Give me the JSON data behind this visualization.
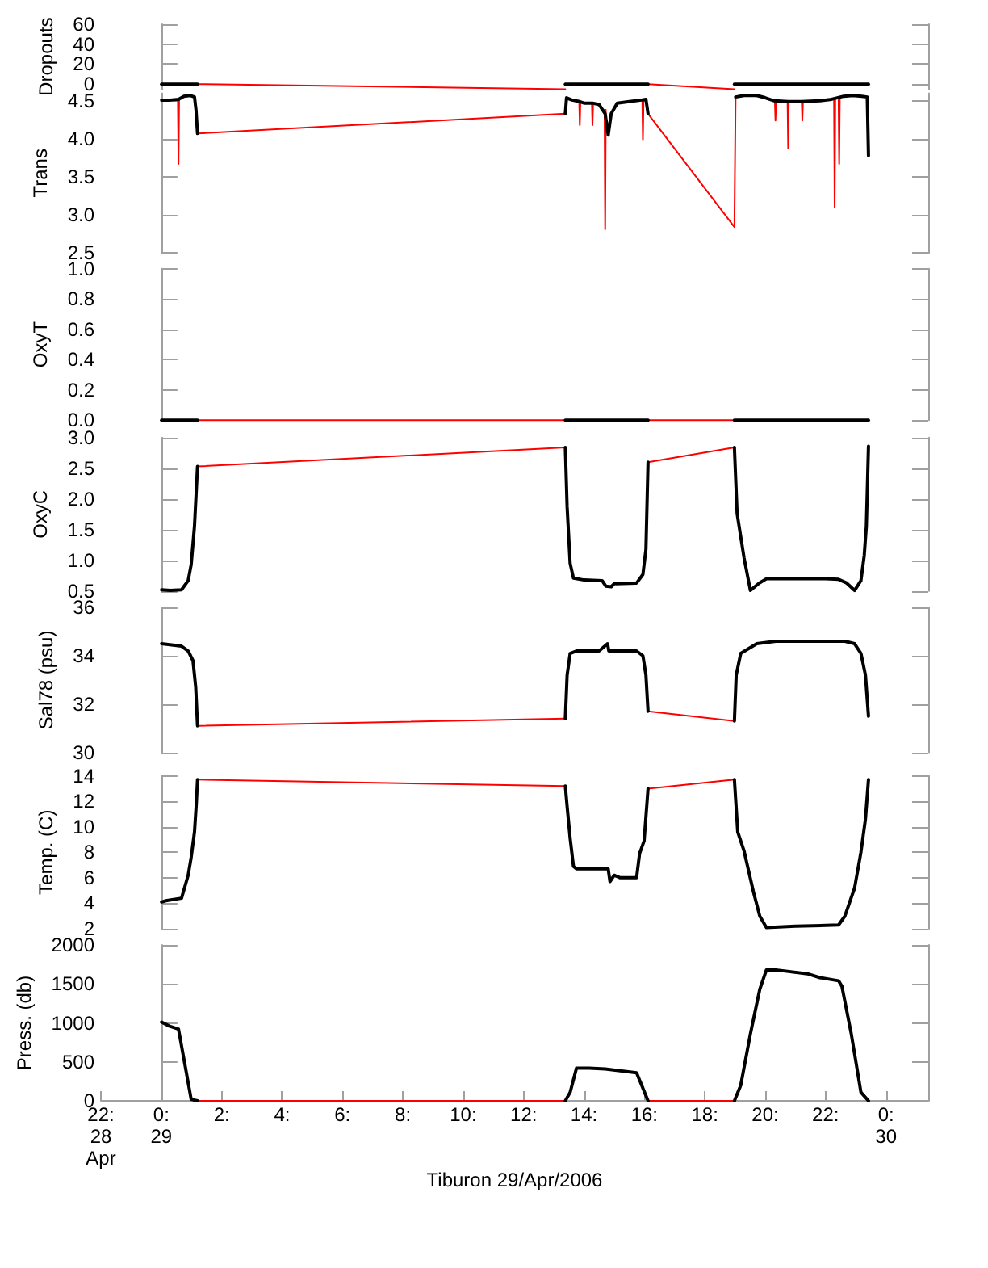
{
  "chart_data": [
    {
      "type": "line",
      "ylabel": "Dropouts",
      "xlim": [
        -2,
        25.4
      ],
      "ylim": [
        -5,
        60
      ],
      "tick_labels": "y",
      "yticks": [
        0,
        20,
        40,
        60
      ],
      "series": [
        {
          "color": "#ff0000",
          "x": [
            1.2,
            13.38
          ],
          "values": [
            0,
            -5
          ]
        },
        {
          "color": "#ff0000",
          "x": [
            16.12,
            18.98
          ],
          "values": [
            0,
            -5
          ]
        },
        {
          "color": "#000000",
          "x": [
            0.01,
            1.2
          ],
          "values": [
            0,
            0
          ]
        },
        {
          "color": "#000000",
          "x": [
            13.38,
            16.12
          ],
          "values": [
            0,
            0
          ]
        },
        {
          "color": "#000000",
          "x": [
            18.98,
            23.42
          ],
          "values": [
            0,
            0
          ]
        }
      ]
    },
    {
      "type": "line",
      "ylabel": "Trans",
      "xlim": [
        -2,
        25.4
      ],
      "ylim": [
        2.5,
        4.6
      ],
      "tick_labels": "y",
      "yticks": [
        2.5,
        {
          "value": 3,
          "label": "3.0"
        },
        3.5,
        {
          "value": 4,
          "label": "4.0"
        },
        4.5
      ],
      "series": [
        {
          "color": "#ff0000",
          "x": [
            1.2,
            13.38
          ],
          "values": [
            4.07,
            4.33
          ]
        },
        {
          "color": "#ff0000",
          "x": [
            16.12,
            18.98,
            19.02
          ],
          "values": [
            4.33,
            2.84,
            4.55
          ]
        },
        {
          "color": "#ff0000",
          "x": [
            0.55,
            0.57,
            0.59
          ],
          "values": [
            4.52,
            3.67,
            4.52
          ]
        },
        {
          "color": "#ff0000",
          "x": [
            13.84,
            13.86,
            13.88
          ],
          "values": [
            4.49,
            4.18,
            4.49
          ]
        },
        {
          "color": "#ff0000",
          "x": [
            14.26,
            14.28,
            14.3
          ],
          "values": [
            4.47,
            4.18,
            4.47
          ]
        },
        {
          "color": "#ff0000",
          "x": [
            14.68,
            14.7,
            14.72
          ],
          "values": [
            4.38,
            2.81,
            4.38
          ]
        },
        {
          "color": "#ff0000",
          "x": [
            15.93,
            15.95,
            15.97
          ],
          "values": [
            4.51,
            3.99,
            4.51
          ]
        },
        {
          "color": "#ff0000",
          "x": [
            20.32,
            20.34,
            20.36
          ],
          "values": [
            4.5,
            4.24,
            4.5
          ]
        },
        {
          "color": "#ff0000",
          "x": [
            20.74,
            20.76,
            20.78
          ],
          "values": [
            4.49,
            3.88,
            4.49
          ]
        },
        {
          "color": "#ff0000",
          "x": [
            21.21,
            21.23,
            21.25
          ],
          "values": [
            4.49,
            4.24,
            4.49
          ]
        },
        {
          "color": "#ff0000",
          "x": [
            22.28,
            22.3,
            22.32
          ],
          "values": [
            4.51,
            3.1,
            4.51
          ]
        },
        {
          "color": "#ff0000",
          "x": [
            22.43,
            22.45,
            22.47
          ],
          "values": [
            4.54,
            3.67,
            4.54
          ]
        },
        {
          "color": "#000000",
          "x": [
            0.01,
            0.3,
            0.57,
            0.75,
            0.95,
            1.1,
            1.15,
            1.2
          ],
          "values": [
            4.51,
            4.51,
            4.52,
            4.56,
            4.57,
            4.55,
            4.38,
            4.07
          ]
        },
        {
          "color": "#000000",
          "x": [
            13.38,
            13.42,
            13.6,
            13.86,
            14.0,
            14.28,
            14.5,
            14.7,
            14.8,
            14.9,
            15.1,
            15.5,
            15.9,
            16.05,
            16.12
          ],
          "values": [
            4.33,
            4.54,
            4.51,
            4.49,
            4.47,
            4.47,
            4.45,
            4.33,
            4.05,
            4.33,
            4.47,
            4.49,
            4.51,
            4.52,
            4.33
          ]
        },
        {
          "color": "#000000",
          "x": [
            19.02,
            19.3,
            19.72,
            20.0,
            20.3,
            20.76,
            21.2,
            21.81,
            22.2,
            22.6,
            22.9,
            23.2,
            23.38,
            23.42
          ],
          "values": [
            4.55,
            4.57,
            4.57,
            4.54,
            4.5,
            4.49,
            4.49,
            4.5,
            4.52,
            4.56,
            4.57,
            4.56,
            4.55,
            3.78
          ]
        }
      ]
    },
    {
      "type": "line",
      "ylabel": "OxyT",
      "xlim": [
        -2,
        25.4
      ],
      "ylim": [
        0,
        1
      ],
      "tick_labels": "y",
      "yticks": [
        {
          "value": 0,
          "label": "0.0"
        },
        0.2,
        0.4,
        0.6,
        0.8,
        {
          "value": 1,
          "label": "1.0"
        }
      ],
      "series": [
        {
          "color": "#ff0000",
          "x": [
            1.2,
            13.38
          ],
          "values": [
            0,
            0
          ]
        },
        {
          "color": "#ff0000",
          "x": [
            16.12,
            18.98
          ],
          "values": [
            0,
            0
          ]
        },
        {
          "color": "#000000",
          "x": [
            0.01,
            1.2
          ],
          "values": [
            0,
            0
          ]
        },
        {
          "color": "#000000",
          "x": [
            13.38,
            16.12
          ],
          "values": [
            0,
            0
          ]
        },
        {
          "color": "#000000",
          "x": [
            18.98,
            23.42
          ],
          "values": [
            0,
            0
          ]
        }
      ]
    },
    {
      "type": "line",
      "ylabel": "OxyC",
      "xlim": [
        -2,
        25.4
      ],
      "ylim": [
        0.5,
        3
      ],
      "tick_labels": "y",
      "yticks": [
        0.5,
        {
          "value": 1,
          "label": "1.0"
        },
        1.5,
        {
          "value": 2,
          "label": "2.0"
        },
        2.5,
        {
          "value": 3,
          "label": "3.0"
        }
      ],
      "series": [
        {
          "color": "#ff0000",
          "x": [
            1.2,
            13.38
          ],
          "values": [
            2.53,
            2.84
          ]
        },
        {
          "color": "#ff0000",
          "x": [
            16.12,
            18.98
          ],
          "values": [
            2.6,
            2.84
          ]
        },
        {
          "color": "#000000",
          "x": [
            0.01,
            0.3,
            0.67,
            0.89,
            0.99,
            1.1,
            1.2
          ],
          "values": [
            0.52,
            0.51,
            0.52,
            0.67,
            0.93,
            1.56,
            2.53
          ]
        },
        {
          "color": "#000000",
          "x": [
            13.38,
            13.44,
            13.54,
            13.65,
            14.0,
            14.6,
            14.72,
            14.9,
            15.0,
            15.74,
            15.95,
            16.05,
            16.12
          ],
          "values": [
            2.84,
            1.87,
            0.95,
            0.71,
            0.68,
            0.67,
            0.58,
            0.57,
            0.62,
            0.63,
            0.77,
            1.18,
            2.6
          ]
        },
        {
          "color": "#000000",
          "x": [
            18.98,
            19.07,
            19.3,
            19.51,
            19.8,
            20.04,
            21,
            22,
            22.43,
            22.7,
            22.96,
            23.17,
            23.28,
            23.35,
            23.42
          ],
          "values": [
            2.84,
            1.76,
            1.04,
            0.51,
            0.63,
            0.7,
            0.7,
            0.7,
            0.69,
            0.63,
            0.51,
            0.67,
            1.08,
            1.56,
            2.86
          ]
        }
      ]
    },
    {
      "type": "line",
      "ylabel": "Sal78 (psu)",
      "xlim": [
        -2,
        25.4
      ],
      "ylim": [
        30,
        36
      ],
      "tick_labels": "y",
      "yticks": [
        30,
        32,
        34,
        36
      ],
      "series": [
        {
          "color": "#ff0000",
          "x": [
            1.2,
            13.38
          ],
          "values": [
            31.1,
            31.4
          ]
        },
        {
          "color": "#ff0000",
          "x": [
            16.12,
            18.98
          ],
          "values": [
            31.7,
            31.3
          ]
        },
        {
          "color": "#000000",
          "x": [
            0.01,
            0.67,
            0.89,
            1.05,
            1.14,
            1.2
          ],
          "values": [
            34.5,
            34.4,
            34.2,
            33.8,
            32.7,
            31.1
          ]
        },
        {
          "color": "#000000",
          "x": [
            13.38,
            13.44,
            13.54,
            13.75,
            14.5,
            14.78,
            14.82,
            15.5,
            15.74,
            15.95,
            16.05,
            16.12
          ],
          "values": [
            31.4,
            33.2,
            34.1,
            34.2,
            34.2,
            34.5,
            34.2,
            34.2,
            34.2,
            34.0,
            33.2,
            31.7
          ]
        },
        {
          "color": "#000000",
          "x": [
            18.98,
            19.04,
            19.19,
            19.72,
            20.35,
            21,
            22,
            22.64,
            22.96,
            23.17,
            23.32,
            23.42
          ],
          "values": [
            31.3,
            33.2,
            34.1,
            34.5,
            34.6,
            34.6,
            34.6,
            34.6,
            34.5,
            34.1,
            33.2,
            31.5
          ]
        }
      ]
    },
    {
      "type": "line",
      "ylabel": "Temp. (C)",
      "xlim": [
        -2,
        25.4
      ],
      "ylim": [
        2,
        14
      ],
      "tick_labels": "y",
      "yticks": [
        2,
        4,
        6,
        8,
        10,
        12,
        14
      ],
      "series": [
        {
          "color": "#ff0000",
          "x": [
            1.2,
            13.38
          ],
          "values": [
            13.7,
            13.2
          ]
        },
        {
          "color": "#ff0000",
          "x": [
            16.12,
            18.98
          ],
          "values": [
            13.0,
            13.7
          ]
        },
        {
          "color": "#000000",
          "x": [
            0.01,
            0.15,
            0.67,
            0.89,
            0.99,
            1.1,
            1.16,
            1.2
          ],
          "values": [
            4.1,
            4.2,
            4.4,
            6.2,
            7.6,
            9.6,
            11.8,
            13.7
          ]
        },
        {
          "color": "#000000",
          "x": [
            13.38,
            13.44,
            13.54,
            13.65,
            13.75,
            14.8,
            14.86,
            15.0,
            15.2,
            15.74,
            15.84,
            15.99,
            16.12
          ],
          "values": [
            13.2,
            11.6,
            9.1,
            6.9,
            6.7,
            6.7,
            5.7,
            6.2,
            6.0,
            6.0,
            7.9,
            8.9,
            13.0
          ]
        },
        {
          "color": "#000000",
          "x": [
            18.98,
            19.09,
            19.3,
            19.61,
            19.82,
            20.04,
            21,
            22.43,
            22.64,
            22.96,
            23.17,
            23.32,
            23.42
          ],
          "values": [
            13.7,
            9.6,
            8.1,
            4.9,
            3.0,
            2.1,
            2.2,
            2.3,
            3.0,
            5.2,
            8.0,
            10.6,
            13.7
          ]
        }
      ]
    },
    {
      "type": "line",
      "ylabel": "Press. (db)",
      "xlabel": "Tiburon 29/Apr/2006",
      "xlim": [
        -2,
        25.4
      ],
      "ylim": [
        0,
        2000
      ],
      "xticks": [
        {
          "value": -2,
          "label": "22:\n28\nApr"
        },
        {
          "value": 0,
          "label": "0:\n29"
        },
        {
          "value": 2,
          "label": "2:"
        },
        {
          "value": 4,
          "label": "4:"
        },
        {
          "value": 6,
          "label": "6:"
        },
        {
          "value": 8,
          "label": "8:"
        },
        {
          "value": 10,
          "label": "10:"
        },
        {
          "value": 12,
          "label": "12:"
        },
        {
          "value": 14,
          "label": "14:"
        },
        {
          "value": 16,
          "label": "16:"
        },
        {
          "value": 18,
          "label": "18:"
        },
        {
          "value": 20,
          "label": "20:"
        },
        {
          "value": 22,
          "label": "22:"
        },
        {
          "value": 24,
          "label": "0:\n30"
        }
      ],
      "yticks": [
        0,
        500,
        1000,
        1500,
        2000
      ],
      "series": [
        {
          "color": "#ff0000",
          "x": [
            1.2,
            13.38
          ],
          "values": [
            0,
            0
          ]
        },
        {
          "color": "#ff0000",
          "x": [
            16.12,
            18.98
          ],
          "values": [
            0,
            0
          ]
        },
        {
          "color": "#000000",
          "x": [
            0.01,
            0.26,
            0.57,
            0.78,
            0.99,
            1.2
          ],
          "values": [
            1010,
            960,
            920,
            470,
            20,
            0
          ]
        },
        {
          "color": "#000000",
          "x": [
            13.38,
            13.54,
            13.75,
            14.17,
            14.7,
            15.74,
            15.91,
            16.12
          ],
          "values": [
            0,
            110,
            420,
            420,
            410,
            360,
            200,
            0
          ]
        },
        {
          "color": "#000000",
          "x": [
            18.98,
            19.19,
            19.51,
            19.82,
            20.04,
            20.35,
            21.4,
            21.81,
            22.43,
            22.54,
            22.85,
            23.17,
            23.42
          ],
          "values": [
            0,
            200,
            860,
            1430,
            1680,
            1680,
            1630,
            1580,
            1540,
            1470,
            860,
            110,
            0
          ]
        }
      ]
    }
  ]
}
